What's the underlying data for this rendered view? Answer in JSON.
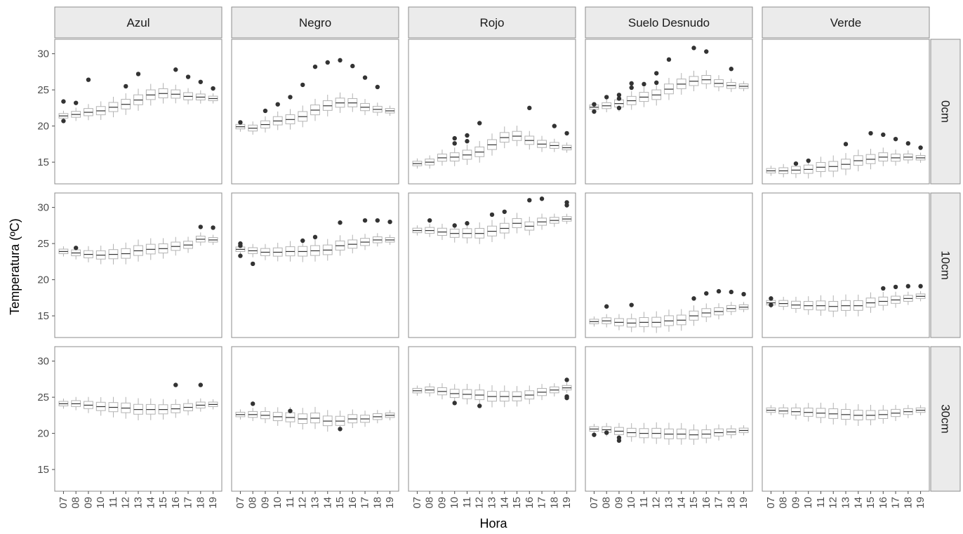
{
  "chart_data": {
    "type": "boxplot",
    "facet_columns": [
      "Azul",
      "Negro",
      "Rojo",
      "Suelo Desnudo",
      "Verde"
    ],
    "facet_rows": [
      "0cm",
      "10cm",
      "30cm"
    ],
    "x": [
      "07",
      "08",
      "09",
      "10",
      "11",
      "12",
      "13",
      "14",
      "15",
      "16",
      "17",
      "18",
      "19"
    ],
    "xlabel": "Hora",
    "ylabel": "Temperatura (ºC)",
    "yticks": [
      15,
      20,
      25,
      30
    ],
    "ylim": [
      12,
      32
    ],
    "grid": false,
    "medians": {
      "0cm": {
        "Azul": [
          21.4,
          21.6,
          21.9,
          22.1,
          22.6,
          23.0,
          23.6,
          24.3,
          24.5,
          24.4,
          24.1,
          24.0,
          23.8
        ],
        "Negro": [
          19.9,
          19.7,
          20.2,
          20.7,
          20.9,
          21.3,
          22.2,
          22.8,
          23.2,
          23.2,
          22.6,
          22.3,
          22.1
        ],
        "Rojo": [
          14.8,
          15.0,
          15.6,
          15.7,
          16.0,
          16.4,
          17.4,
          18.4,
          18.6,
          18.0,
          17.5,
          17.3,
          17.0
        ],
        "Suelo Desnudo": [
          22.6,
          22.8,
          23.1,
          23.5,
          24.0,
          24.3,
          25.1,
          25.8,
          26.2,
          26.4,
          25.9,
          25.6,
          25.5
        ],
        "Verde": [
          13.8,
          13.8,
          13.9,
          14.0,
          14.3,
          14.4,
          14.7,
          15.2,
          15.4,
          15.7,
          15.6,
          15.7,
          15.6
        ]
      },
      "10cm": {
        "Azul": [
          23.9,
          23.7,
          23.5,
          23.4,
          23.5,
          23.6,
          24.0,
          24.2,
          24.3,
          24.6,
          24.8,
          25.6,
          25.5
        ],
        "Negro": [
          24.2,
          24.0,
          23.8,
          23.8,
          23.9,
          23.9,
          24.0,
          24.1,
          24.7,
          24.9,
          25.2,
          25.5,
          25.5
        ],
        "Rojo": [
          26.8,
          26.8,
          26.6,
          26.4,
          26.4,
          26.4,
          26.7,
          27.1,
          27.8,
          27.4,
          28.0,
          28.2,
          28.4
        ],
        "Suelo Desnudo": [
          14.2,
          14.3,
          14.1,
          14.0,
          14.1,
          14.1,
          14.3,
          14.4,
          15.0,
          15.4,
          15.6,
          16.0,
          16.2
        ],
        "Verde": [
          16.8,
          16.7,
          16.5,
          16.4,
          16.4,
          16.3,
          16.4,
          16.4,
          16.8,
          17.0,
          17.2,
          17.4,
          17.7
        ]
      },
      "30cm": {
        "Azul": [
          24.1,
          24.1,
          23.9,
          23.7,
          23.6,
          23.5,
          23.3,
          23.3,
          23.3,
          23.4,
          23.6,
          23.9,
          24.0
        ],
        "Negro": [
          22.6,
          22.6,
          22.5,
          22.3,
          22.2,
          22.0,
          22.1,
          21.7,
          21.7,
          22.0,
          22.0,
          22.3,
          22.5
        ],
        "Rojo": [
          25.9,
          26.0,
          25.8,
          25.5,
          25.4,
          25.3,
          25.1,
          25.1,
          25.1,
          25.3,
          25.7,
          26.0,
          26.3
        ],
        "Suelo Desnudo": [
          20.6,
          20.5,
          20.3,
          20.1,
          20.0,
          20.0,
          19.9,
          19.9,
          19.8,
          19.9,
          20.1,
          20.2,
          20.4
        ],
        "Verde": [
          23.2,
          23.1,
          23.0,
          22.9,
          22.8,
          22.7,
          22.6,
          22.5,
          22.5,
          22.6,
          22.8,
          23.0,
          23.2
        ]
      }
    },
    "outliers": {
      "0cm": {
        "Azul": [
          [
            0,
            23.4
          ],
          [
            0,
            20.7
          ],
          [
            1,
            23.2
          ],
          [
            2,
            26.4
          ],
          [
            5,
            25.5
          ],
          [
            6,
            27.2
          ],
          [
            9,
            27.8
          ],
          [
            10,
            26.8
          ],
          [
            11,
            26.1
          ],
          [
            12,
            25.2
          ]
        ],
        "Negro": [
          [
            0,
            20.5
          ],
          [
            2,
            22.1
          ],
          [
            3,
            23.0
          ],
          [
            4,
            24.0
          ],
          [
            5,
            25.7
          ],
          [
            6,
            28.2
          ],
          [
            7,
            28.8
          ],
          [
            8,
            29.1
          ],
          [
            9,
            28.3
          ],
          [
            10,
            26.7
          ],
          [
            11,
            25.4
          ]
        ],
        "Rojo": [
          [
            3,
            18.3
          ],
          [
            3,
            17.6
          ],
          [
            4,
            18.7
          ],
          [
            4,
            17.9
          ],
          [
            5,
            20.4
          ],
          [
            9,
            22.5
          ],
          [
            11,
            20.0
          ],
          [
            12,
            19.0
          ]
        ],
        "Suelo Desnudo": [
          [
            0,
            23.0
          ],
          [
            0,
            22.0
          ],
          [
            1,
            24.0
          ],
          [
            2,
            24.3
          ],
          [
            2,
            23.8
          ],
          [
            2,
            22.5
          ],
          [
            3,
            25.9
          ],
          [
            3,
            25.3
          ],
          [
            4,
            25.8
          ],
          [
            5,
            27.3
          ],
          [
            5,
            26.0
          ],
          [
            6,
            29.2
          ],
          [
            8,
            30.8
          ],
          [
            9,
            30.3
          ],
          [
            11,
            27.9
          ]
        ],
        "Verde": [
          [
            2,
            14.8
          ],
          [
            3,
            15.2
          ],
          [
            6,
            17.5
          ],
          [
            8,
            19.0
          ],
          [
            9,
            18.8
          ],
          [
            10,
            18.2
          ],
          [
            11,
            17.6
          ],
          [
            12,
            17.0
          ]
        ]
      },
      "10cm": {
        "Azul": [
          [
            1,
            24.4
          ],
          [
            11,
            27.3
          ],
          [
            12,
            27.2
          ]
        ],
        "Negro": [
          [
            0,
            25.0
          ],
          [
            0,
            24.7
          ],
          [
            0,
            23.3
          ],
          [
            1,
            22.2
          ],
          [
            5,
            25.4
          ],
          [
            6,
            25.9
          ],
          [
            8,
            27.9
          ],
          [
            10,
            28.2
          ],
          [
            11,
            28.2
          ],
          [
            12,
            28.0
          ]
        ],
        "Rojo": [
          [
            1,
            28.2
          ],
          [
            3,
            27.5
          ],
          [
            4,
            27.8
          ],
          [
            6,
            29.0
          ],
          [
            7,
            29.4
          ],
          [
            9,
            31.0
          ],
          [
            10,
            31.2
          ],
          [
            12,
            30.7
          ],
          [
            12,
            30.3
          ]
        ],
        "Suelo Desnudo": [
          [
            1,
            16.3
          ],
          [
            3,
            16.5
          ],
          [
            8,
            17.4
          ],
          [
            9,
            18.1
          ],
          [
            10,
            18.4
          ],
          [
            11,
            18.3
          ],
          [
            12,
            18.0
          ]
        ],
        "Verde": [
          [
            0,
            17.4
          ],
          [
            0,
            16.5
          ],
          [
            9,
            18.8
          ],
          [
            10,
            19.0
          ],
          [
            11,
            19.1
          ],
          [
            12,
            19.1
          ]
        ]
      },
      "30cm": {
        "Azul": [
          [
            9,
            26.7
          ],
          [
            11,
            26.7
          ]
        ],
        "Negro": [
          [
            1,
            24.1
          ],
          [
            4,
            23.1
          ],
          [
            8,
            20.6
          ]
        ],
        "Rojo": [
          [
            3,
            24.2
          ],
          [
            5,
            23.8
          ],
          [
            12,
            27.4
          ],
          [
            12,
            25.1
          ],
          [
            12,
            24.9
          ]
        ],
        "Suelo Desnudo": [
          [
            0,
            19.8
          ],
          [
            1,
            20.1
          ],
          [
            2,
            19.4
          ],
          [
            2,
            19.0
          ]
        ],
        "Verde": []
      }
    }
  }
}
